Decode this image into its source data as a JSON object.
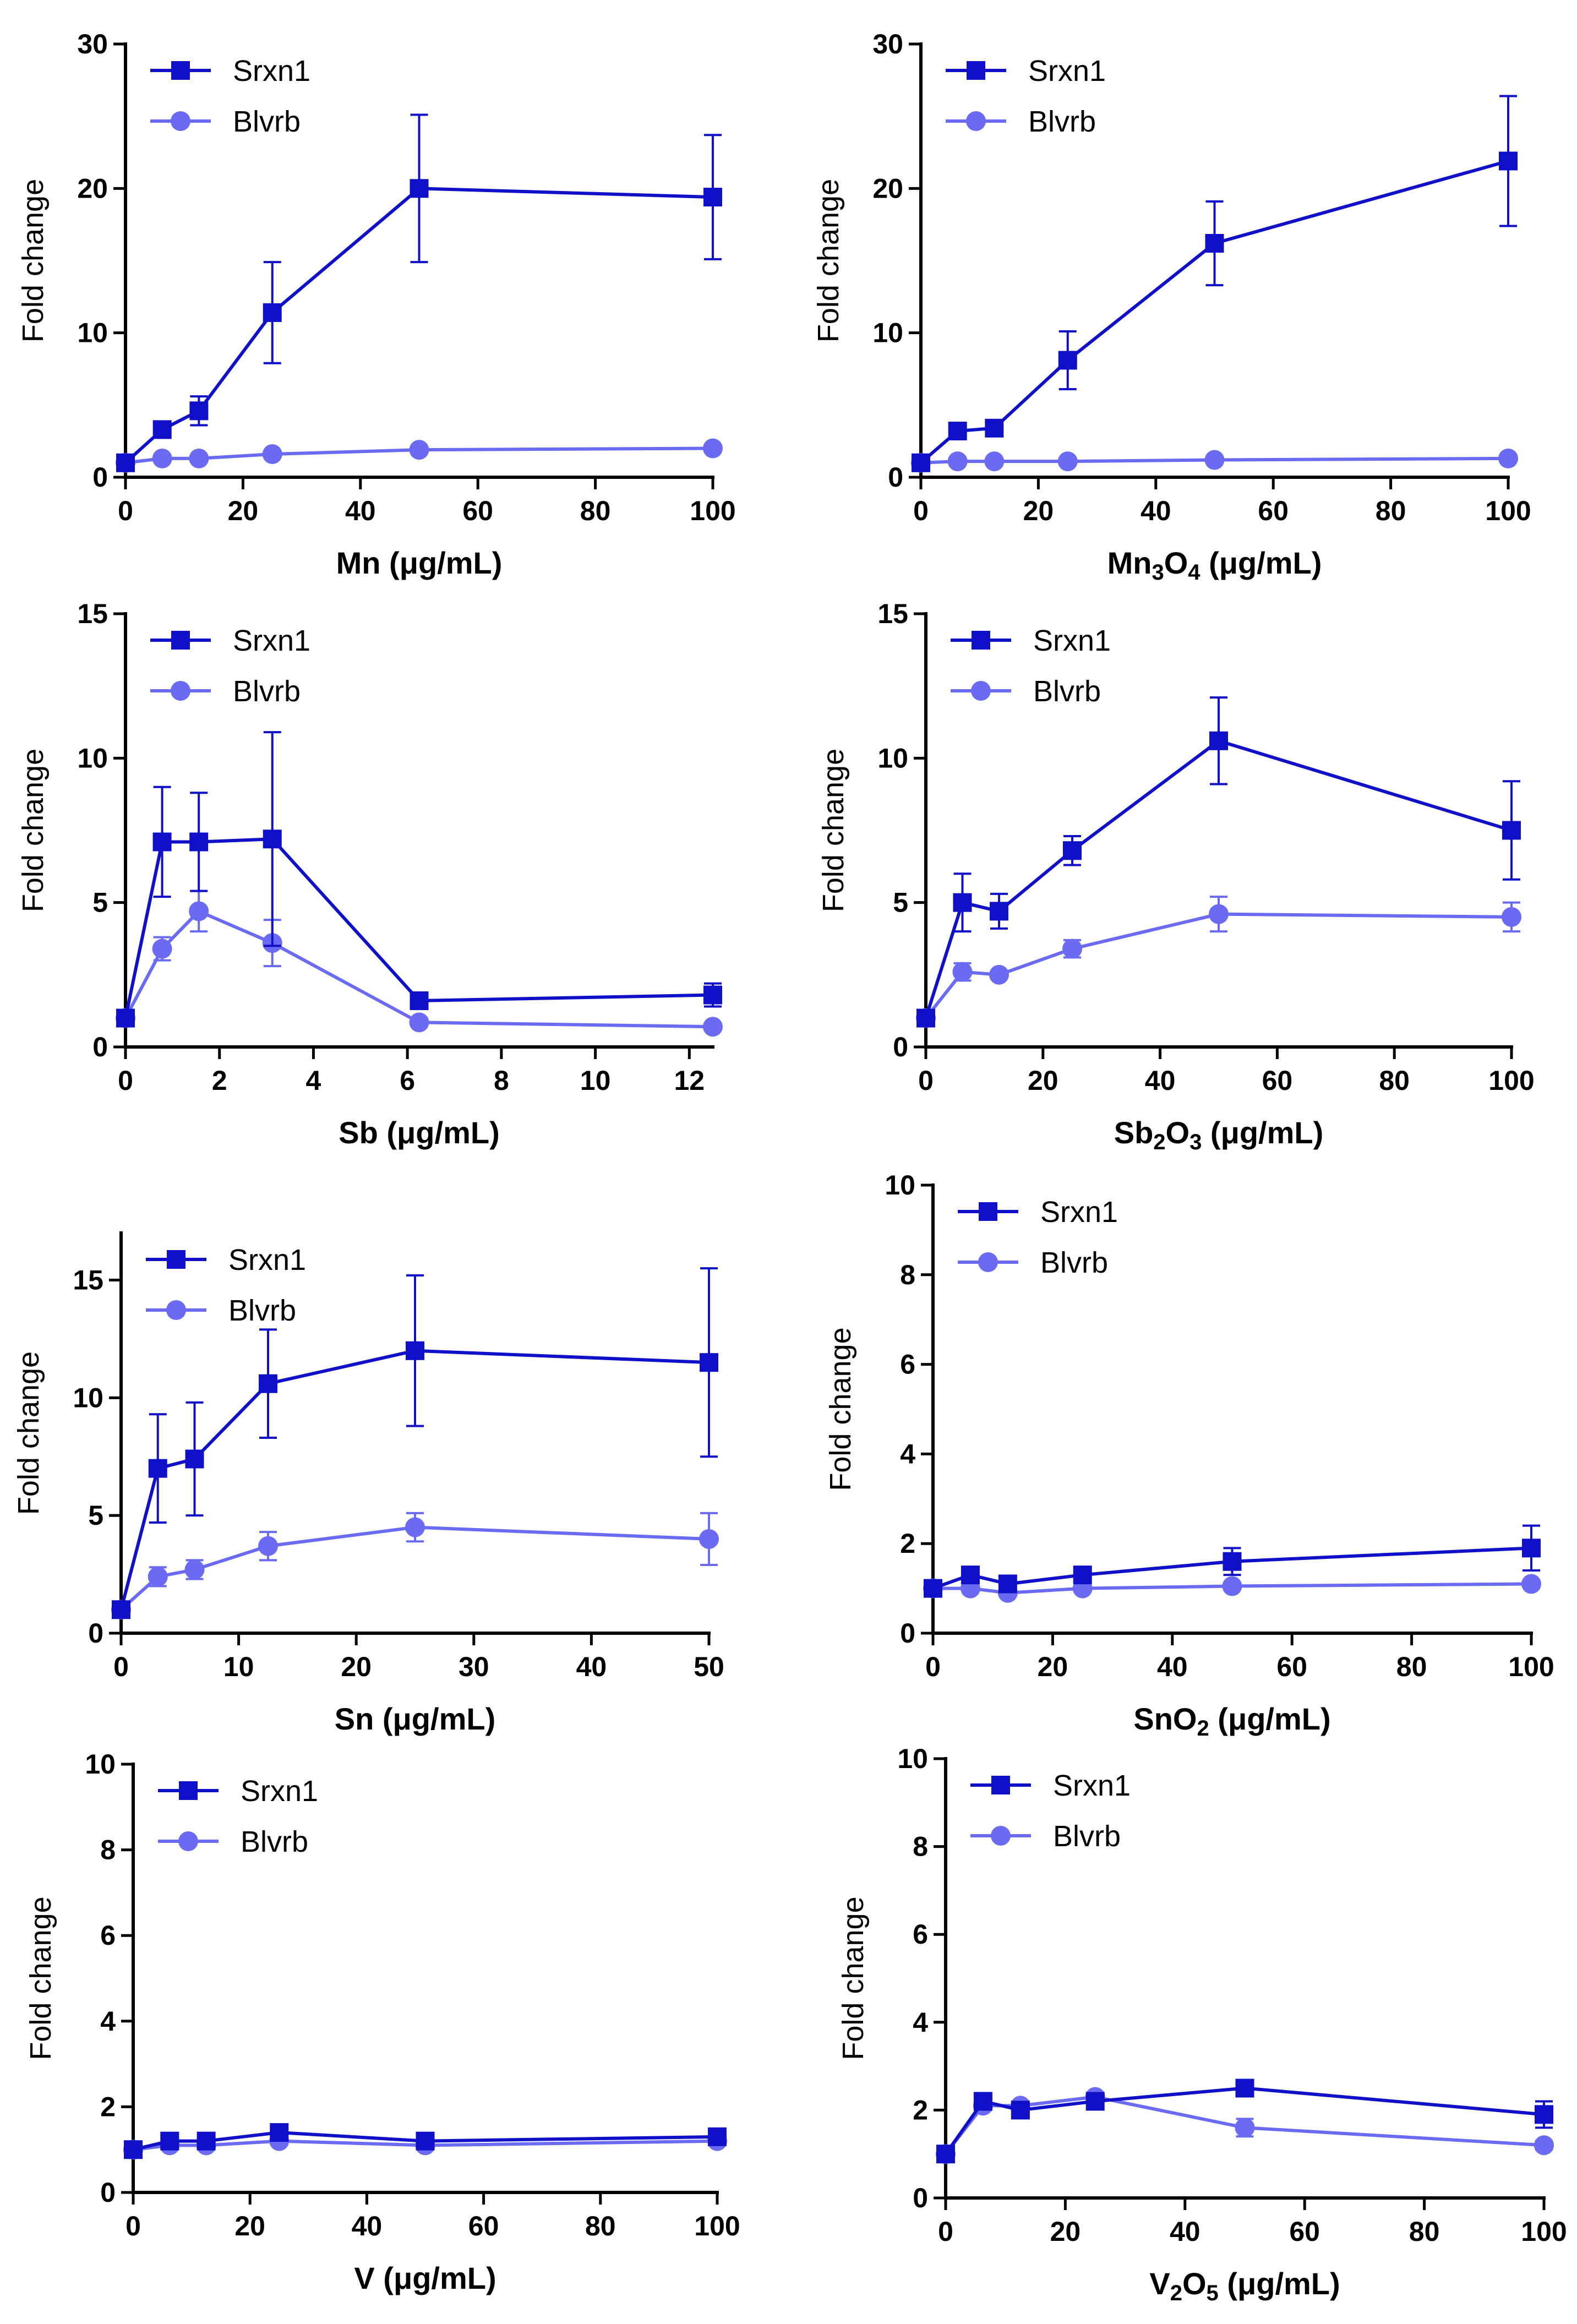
{
  "colors": {
    "srxn1": "#1010C8",
    "blvrb": "#6A6AF2",
    "axis": "#000000"
  },
  "chart_data": [
    {
      "type": "line",
      "ylabel": "Fold change",
      "xlabel_base": "Mn",
      "xlabel_sub1": "",
      "xlabel_mid": "",
      "xlabel_sub2": "",
      "xlabel_units": " (μg/mL)",
      "xlim": [
        0,
        100
      ],
      "ylim": [
        0,
        30
      ],
      "xticks": [
        0,
        20,
        40,
        60,
        80,
        100
      ],
      "yticks": [
        0,
        10,
        20,
        30
      ],
      "legend": {
        "placement": "top-left",
        "entries": [
          "Srxn1",
          "Blvrb"
        ]
      },
      "series": [
        {
          "name": "Srxn1",
          "marker": "square",
          "x": [
            0,
            6.25,
            12.5,
            25,
            50,
            100
          ],
          "y": [
            1.0,
            3.3,
            4.6,
            11.4,
            20.0,
            19.4
          ],
          "err": [
            0,
            0.5,
            1.0,
            3.5,
            5.1,
            4.3
          ]
        },
        {
          "name": "Blvrb",
          "marker": "circle",
          "x": [
            0,
            6.25,
            12.5,
            25,
            50,
            100
          ],
          "y": [
            1.0,
            1.3,
            1.3,
            1.6,
            1.9,
            2.0
          ],
          "err": [
            0,
            0,
            0,
            0,
            0,
            0
          ]
        }
      ]
    },
    {
      "type": "line",
      "ylabel": "Fold change",
      "xlabel_base": "Mn",
      "xlabel_sub1": "3",
      "xlabel_mid": "O",
      "xlabel_sub2": "4",
      "xlabel_units": " (μg/mL)",
      "xlim": [
        0,
        100
      ],
      "ylim": [
        0,
        30
      ],
      "xticks": [
        0,
        20,
        40,
        60,
        80,
        100
      ],
      "yticks": [
        0,
        10,
        20,
        30
      ],
      "legend": {
        "placement": "top-left",
        "entries": [
          "Srxn1",
          "Blvrb"
        ]
      },
      "series": [
        {
          "name": "Srxn1",
          "marker": "square",
          "x": [
            0,
            6.25,
            12.5,
            25,
            50,
            100
          ],
          "y": [
            1.0,
            3.2,
            3.4,
            8.1,
            16.2,
            21.9
          ],
          "err": [
            0,
            0.3,
            0.4,
            2.0,
            2.9,
            4.5
          ]
        },
        {
          "name": "Blvrb",
          "marker": "circle",
          "x": [
            0,
            6.25,
            12.5,
            25,
            50,
            100
          ],
          "y": [
            1.0,
            1.1,
            1.1,
            1.1,
            1.2,
            1.3
          ],
          "err": [
            0,
            0,
            0,
            0,
            0,
            0
          ]
        }
      ]
    },
    {
      "type": "line",
      "ylabel": "Fold change",
      "xlabel_base": "Sb",
      "xlabel_sub1": "",
      "xlabel_mid": "",
      "xlabel_sub2": "",
      "xlabel_units": " (μg/mL)",
      "xlim": [
        0,
        12.5
      ],
      "ylim": [
        0,
        15
      ],
      "xticks": [
        0,
        2,
        4,
        6,
        8,
        10,
        12
      ],
      "yticks": [
        0,
        5,
        10,
        15
      ],
      "legend": {
        "placement": "top-left",
        "entries": [
          "Srxn1",
          "Blvrb"
        ]
      },
      "series": [
        {
          "name": "Srxn1",
          "marker": "square",
          "x": [
            0,
            0.78,
            1.56,
            3.125,
            6.25,
            12.5
          ],
          "y": [
            1.0,
            7.1,
            7.1,
            7.2,
            1.6,
            1.8
          ],
          "err": [
            0,
            1.9,
            1.7,
            3.7,
            0.2,
            0.4
          ]
        },
        {
          "name": "Blvrb",
          "marker": "circle",
          "x": [
            0,
            0.78,
            1.56,
            3.125,
            6.25,
            12.5
          ],
          "y": [
            1.0,
            3.4,
            4.7,
            3.6,
            0.85,
            0.7
          ],
          "err": [
            0,
            0.4,
            0.7,
            0.8,
            0,
            0
          ]
        }
      ]
    },
    {
      "type": "line",
      "ylabel": "Fold change",
      "xlabel_base": "Sb",
      "xlabel_sub1": "2",
      "xlabel_mid": "O",
      "xlabel_sub2": "3",
      "xlabel_units": " (μg/mL)",
      "xlim": [
        0,
        100
      ],
      "ylim": [
        0,
        15
      ],
      "xticks": [
        0,
        20,
        40,
        60,
        80,
        100
      ],
      "yticks": [
        0,
        5,
        10,
        15
      ],
      "legend": {
        "placement": "top-left",
        "entries": [
          "Srxn1",
          "Blvrb"
        ]
      },
      "series": [
        {
          "name": "Srxn1",
          "marker": "square",
          "x": [
            0,
            6.25,
            12.5,
            25,
            50,
            100
          ],
          "y": [
            1.0,
            5.0,
            4.7,
            6.8,
            10.6,
            7.5
          ],
          "err": [
            0,
            1.0,
            0.6,
            0.5,
            1.5,
            1.7
          ]
        },
        {
          "name": "Blvrb",
          "marker": "circle",
          "x": [
            0,
            6.25,
            12.5,
            25,
            50,
            100
          ],
          "y": [
            1.0,
            2.6,
            2.5,
            3.4,
            4.6,
            4.5
          ],
          "err": [
            0,
            0.3,
            0,
            0.3,
            0.6,
            0.5
          ]
        }
      ]
    },
    {
      "type": "line",
      "ylabel": "Fold change",
      "xlabel_base": "Sn",
      "xlabel_sub1": "",
      "xlabel_mid": "",
      "xlabel_sub2": "",
      "xlabel_units": " (μg/mL)",
      "xlim": [
        0,
        50
      ],
      "ylim": [
        0,
        17
      ],
      "xticks": [
        0,
        10,
        20,
        30,
        40,
        50
      ],
      "yticks": [
        0,
        5,
        10,
        15
      ],
      "legend": {
        "placement": "top-left",
        "entries": [
          "Srxn1",
          "Blvrb"
        ]
      },
      "series": [
        {
          "name": "Srxn1",
          "marker": "square",
          "x": [
            0,
            3.125,
            6.25,
            12.5,
            25,
            50
          ],
          "y": [
            1.0,
            7.0,
            7.4,
            10.6,
            12.0,
            11.5
          ],
          "err": [
            0,
            2.3,
            2.4,
            2.3,
            3.2,
            4.0
          ]
        },
        {
          "name": "Blvrb",
          "marker": "circle",
          "x": [
            0,
            3.125,
            6.25,
            12.5,
            25,
            50
          ],
          "y": [
            1.0,
            2.4,
            2.7,
            3.7,
            4.5,
            4.0
          ],
          "err": [
            0,
            0.4,
            0.4,
            0.6,
            0.6,
            1.1
          ]
        }
      ]
    },
    {
      "type": "line",
      "ylabel": "Fold change",
      "xlabel_base": "SnO",
      "xlabel_sub1": "2",
      "xlabel_mid": "",
      "xlabel_sub2": "",
      "xlabel_units": " (μg/mL)",
      "xlim": [
        0,
        100
      ],
      "ylim": [
        0,
        10
      ],
      "xticks": [
        0,
        20,
        40,
        60,
        80,
        100
      ],
      "yticks": [
        0,
        2,
        4,
        6,
        8,
        10
      ],
      "legend": {
        "placement": "top-left",
        "entries": [
          "Srxn1",
          "Blvrb"
        ]
      },
      "series": [
        {
          "name": "Srxn1",
          "marker": "square",
          "x": [
            0,
            6.25,
            12.5,
            25,
            50,
            100
          ],
          "y": [
            1.0,
            1.3,
            1.1,
            1.3,
            1.6,
            1.9
          ],
          "err": [
            0,
            0.1,
            0.1,
            0.1,
            0.3,
            0.5
          ]
        },
        {
          "name": "Blvrb",
          "marker": "circle",
          "x": [
            0,
            6.25,
            12.5,
            25,
            50,
            100
          ],
          "y": [
            1.0,
            1.0,
            0.9,
            1.0,
            1.05,
            1.1
          ],
          "err": [
            0,
            0,
            0,
            0,
            0,
            0
          ]
        }
      ]
    },
    {
      "type": "line",
      "ylabel": "Fold change",
      "xlabel_base": "V",
      "xlabel_sub1": "",
      "xlabel_mid": "",
      "xlabel_sub2": "",
      "xlabel_units": " (μg/mL)",
      "xlim": [
        0,
        100
      ],
      "ylim": [
        0,
        10
      ],
      "xticks": [
        0,
        20,
        40,
        60,
        80,
        100
      ],
      "yticks": [
        0,
        2,
        4,
        6,
        8,
        10
      ],
      "legend": {
        "placement": "top-left",
        "entries": [
          "Srxn1",
          "Blvrb"
        ]
      },
      "series": [
        {
          "name": "Srxn1",
          "marker": "square",
          "x": [
            0,
            6.25,
            12.5,
            25,
            50,
            100
          ],
          "y": [
            1.0,
            1.2,
            1.2,
            1.4,
            1.2,
            1.3
          ],
          "err": [
            0,
            0,
            0,
            0.1,
            0,
            0.1
          ]
        },
        {
          "name": "Blvrb",
          "marker": "circle",
          "x": [
            0,
            6.25,
            12.5,
            25,
            50,
            100
          ],
          "y": [
            1.0,
            1.1,
            1.1,
            1.2,
            1.1,
            1.2
          ],
          "err": [
            0,
            0,
            0,
            0,
            0,
            0
          ]
        }
      ]
    },
    {
      "type": "line",
      "ylabel": "Fold change",
      "xlabel_base": "V",
      "xlabel_sub1": "2",
      "xlabel_mid": "O",
      "xlabel_sub2": "5",
      "xlabel_units": " (μg/mL)",
      "xlim": [
        0,
        100
      ],
      "ylim": [
        0,
        10
      ],
      "xticks": [
        0,
        20,
        40,
        60,
        80,
        100
      ],
      "yticks": [
        0,
        2,
        4,
        6,
        8,
        10
      ],
      "legend": {
        "placement": "top-left",
        "entries": [
          "Srxn1",
          "Blvrb"
        ]
      },
      "series": [
        {
          "name": "Srxn1",
          "marker": "square",
          "x": [
            0,
            6.25,
            12.5,
            25,
            50,
            100
          ],
          "y": [
            1.0,
            2.2,
            2.0,
            2.2,
            2.5,
            1.9
          ],
          "err": [
            0,
            0.1,
            0.1,
            0.1,
            0.1,
            0.3
          ]
        },
        {
          "name": "Blvrb",
          "marker": "circle",
          "x": [
            0,
            6.25,
            12.5,
            25,
            50,
            100
          ],
          "y": [
            1.0,
            2.1,
            2.1,
            2.3,
            1.6,
            1.2
          ],
          "err": [
            0,
            0.1,
            0.1,
            0.1,
            0.2,
            0.1
          ]
        }
      ]
    }
  ]
}
